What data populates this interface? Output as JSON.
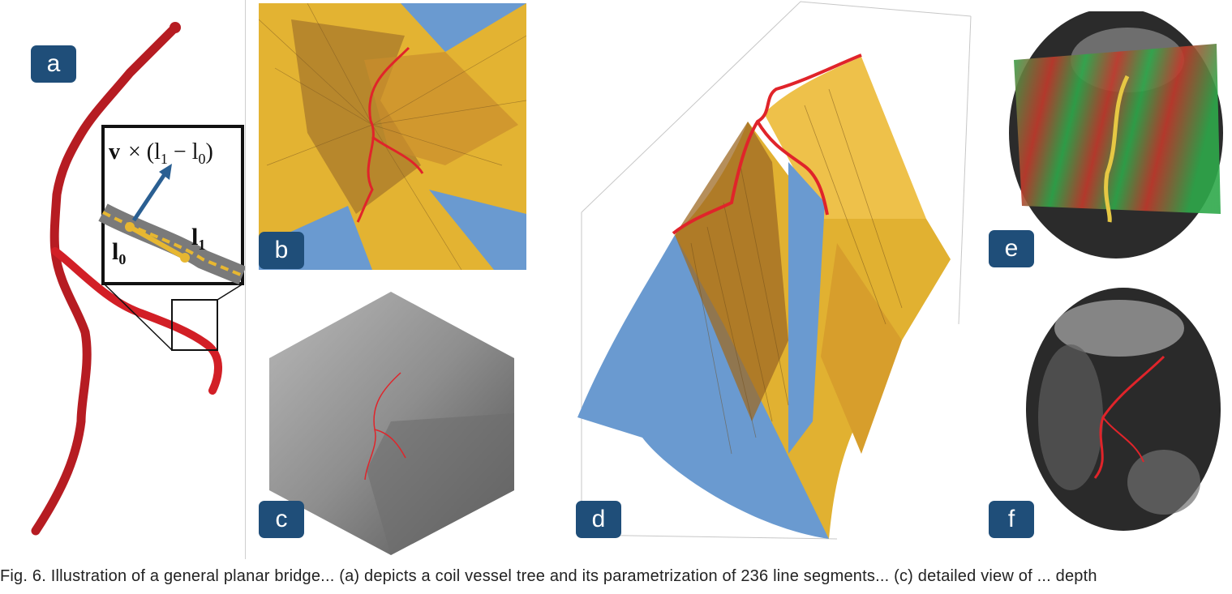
{
  "figure": {
    "panels": [
      {
        "id": "a",
        "label": "a",
        "inset_formula_v": "v",
        "inset_formula_rest": "× (l",
        "inset_l1": "l",
        "inset_l0": "l",
        "sub1": "1",
        "sub0": "0"
      },
      {
        "id": "b",
        "label": "b"
      },
      {
        "id": "c",
        "label": "c"
      },
      {
        "id": "d",
        "label": "d"
      },
      {
        "id": "e",
        "label": "e"
      },
      {
        "id": "f",
        "label": "f"
      }
    ],
    "caption": "Fig. 6.  Illustration of a general planar bridge... (a) depicts a coil vessel tree and its parametrization of 236 line segments... (c) detailed view of ... depth"
  },
  "colors": {
    "label_bg": "#1f4e79",
    "vessel_red": "#d21f26",
    "surface_yellow": "#e8b830",
    "surface_blue": "#6a9ad0",
    "plane_gray": "#8a8a8a"
  }
}
